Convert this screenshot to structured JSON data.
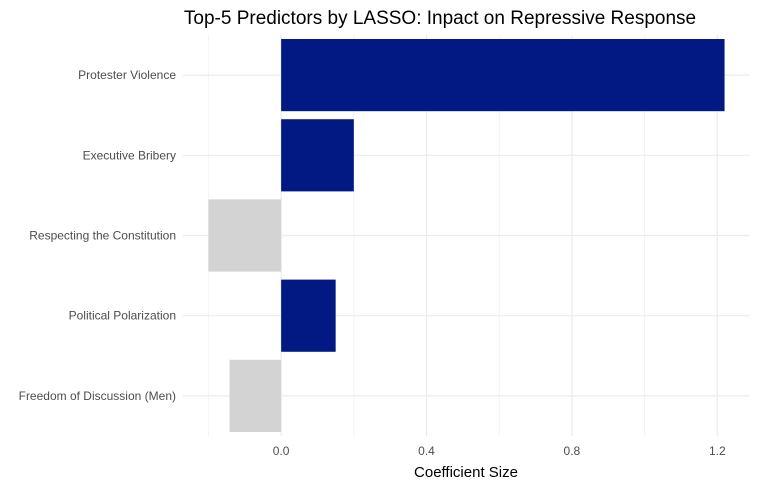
{
  "chart_data": {
    "type": "bar",
    "orientation": "horizontal",
    "title": "Top-5 Predictors by LASSO: Inpact on Repressive Response",
    "xlabel": "Coefficient Size",
    "ylabel": "",
    "categories": [
      "Protester Violence",
      "Executive Bribery",
      "Respecting the Constitution",
      "Political Polarization",
      "Freedom of Discussion (Men)"
    ],
    "values": [
      1.22,
      0.2,
      -0.2,
      0.15,
      -0.142
    ],
    "xlim": [
      -0.27,
      1.29
    ],
    "xticks": [
      0.0,
      0.4,
      0.8,
      1.2
    ],
    "xtick_labels": [
      "0.0",
      "0.4",
      "0.8",
      "1.2"
    ],
    "grid": true,
    "legend": "none",
    "colors": {
      "positive": "#021983",
      "negative": "#d3d3d3",
      "grid": "#ebebeb"
    }
  }
}
